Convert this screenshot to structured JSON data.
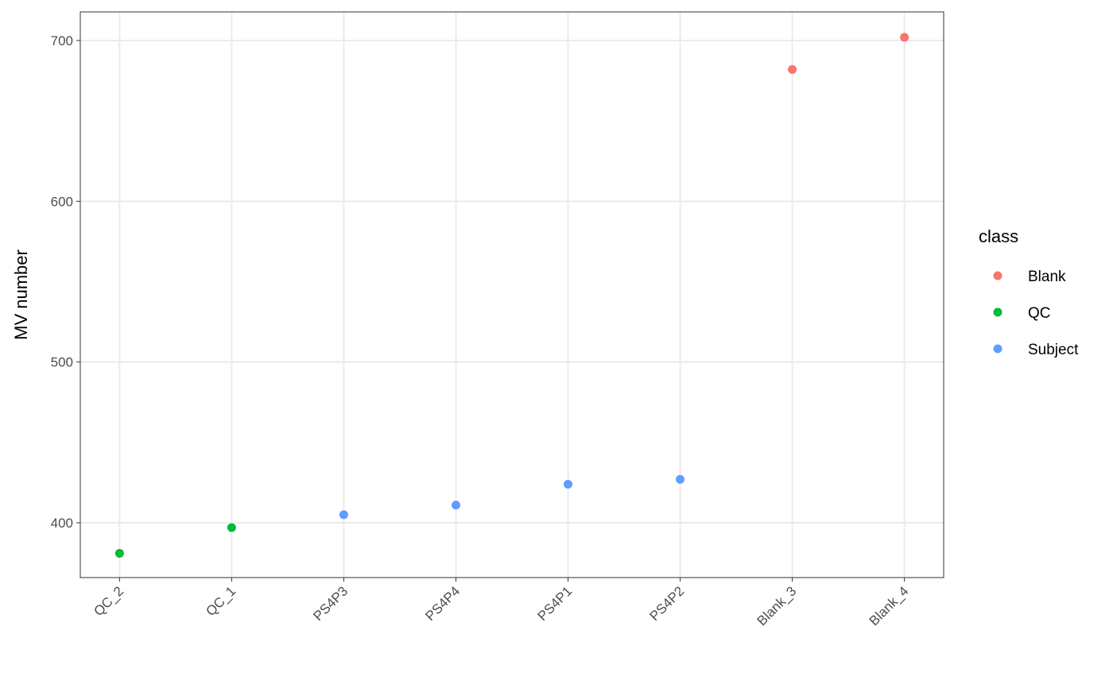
{
  "chart_data": {
    "type": "scatter",
    "y_label": "MV number",
    "legend_title": "class",
    "categories": [
      "QC_2",
      "QC_1",
      "PS4P3",
      "PS4P4",
      "PS4P1",
      "PS4P2",
      "Blank_3",
      "Blank_4"
    ],
    "series": [
      {
        "name": "Blank",
        "color": "#f8766d",
        "values": [
          null,
          null,
          null,
          null,
          null,
          null,
          682,
          702
        ]
      },
      {
        "name": "QC",
        "color": "#00ba38",
        "values": [
          381,
          397,
          null,
          null,
          null,
          null,
          null,
          null
        ]
      },
      {
        "name": "Subject",
        "color": "#619cff",
        "values": [
          null,
          null,
          405,
          411,
          424,
          427,
          null,
          null
        ]
      }
    ],
    "ylim": [
      365.9,
      717.8
    ],
    "yticks": [
      400,
      500,
      600,
      700
    ],
    "grid": true,
    "legend": "right"
  }
}
